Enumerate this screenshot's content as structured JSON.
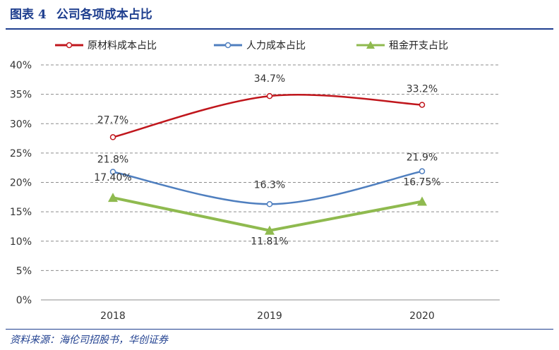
{
  "header": {
    "figure_no": "图表 4",
    "title": "公司各项成本占比"
  },
  "footer": {
    "source": "资料来源：海伦司招股书，华创证券"
  },
  "colors": {
    "accent": "#1f3f8f",
    "grid": "#8c8c8c",
    "text": "#333333"
  },
  "chart_data": {
    "type": "line",
    "title": "",
    "xlabel": "",
    "ylabel": "",
    "categories": [
      "2018",
      "2019",
      "2020"
    ],
    "ylim": [
      0,
      40
    ],
    "yticks": [
      "0%",
      "5%",
      "10%",
      "15%",
      "20%",
      "25%",
      "30%",
      "35%",
      "40%"
    ],
    "grid": true,
    "legend_position": "top",
    "series": [
      {
        "name": "原材料成本占比",
        "values": [
          27.7,
          34.7,
          33.2
        ],
        "labels": [
          "27.7%",
          "34.7%",
          "33.2%"
        ],
        "color": "#c0161c",
        "marker": "circle",
        "smooth": true
      },
      {
        "name": "人力成本占比",
        "values": [
          21.8,
          16.3,
          21.9
        ],
        "labels": [
          "21.8%",
          "16.3%",
          "21.9%"
        ],
        "color": "#4f7fbf",
        "marker": "circle",
        "smooth": true
      },
      {
        "name": "租金开支占比",
        "values": [
          17.4,
          11.81,
          16.75
        ],
        "labels": [
          "17.40%",
          "11.81%",
          "16.75%"
        ],
        "color": "#8fba4f",
        "marker": "triangle",
        "smooth": false
      }
    ]
  }
}
